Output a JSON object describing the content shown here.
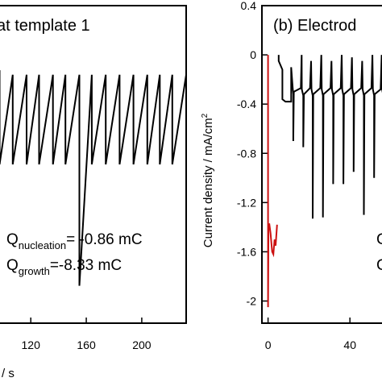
{
  "chart_data": [
    {
      "type": "line",
      "panel_title": "at template 1",
      "xlabel": "/ s",
      "xlim": [
        92,
        232
      ],
      "x_ticks": [
        120,
        160,
        200
      ],
      "series": [
        {
          "color": "#000000",
          "description_of_shape": "repeating sawtooth pulses",
          "points": [
            [
              92,
              -0.05
            ],
            [
              97.5,
              -0.05
            ],
            [
              97.5,
              -0.55
            ],
            [
              107,
              -0.07
            ],
            [
              107,
              -0.55
            ],
            [
              117,
              -0.07
            ],
            [
              117,
              -0.55
            ],
            [
              126,
              -0.07
            ],
            [
              126,
              -0.55
            ],
            [
              136,
              -0.07
            ],
            [
              136,
              -0.55
            ],
            [
              145,
              -0.07
            ],
            [
              145,
              -0.55
            ],
            [
              155,
              -0.07
            ],
            [
              155,
              -1.2
            ],
            [
              164,
              -0.07
            ],
            [
              164,
              -0.55
            ],
            [
              174,
              -0.07
            ],
            [
              174,
              -0.55
            ],
            [
              184,
              -0.07
            ],
            [
              184,
              -0.55
            ],
            [
              194,
              -0.07
            ],
            [
              194,
              -0.55
            ],
            [
              204,
              -0.07
            ],
            [
              204,
              -0.55
            ],
            [
              213,
              -0.07
            ],
            [
              213,
              -0.55
            ],
            [
              222,
              -0.07
            ],
            [
              222,
              -0.55
            ],
            [
              232,
              -0.07
            ]
          ]
        }
      ],
      "annotations": {
        "q_nucleation": {
          "base": "Q",
          "sub": "nucleation",
          "value": "= -0.86 mC"
        },
        "q_growth": {
          "base": "Q",
          "sub": "growth",
          "value": "=-8.33 mC"
        }
      }
    },
    {
      "type": "line",
      "panel_title": "(b) Electrod",
      "ylabel": "Current density / mA/cm",
      "ylabel_sup": "2",
      "xlim": [
        -3,
        60
      ],
      "ylim": [
        -2.18,
        0.4
      ],
      "x_ticks": [
        0,
        40
      ],
      "y_ticks": [
        0.4,
        0,
        -0.4,
        -0.8,
        -1.2,
        -1.6,
        -2
      ],
      "series": [
        {
          "color": "#cc1111",
          "points": [
            [
              0,
              0
            ],
            [
              0,
              -2.05
            ],
            [
              0.2,
              -1.4
            ],
            [
              0.6,
              -1.37
            ],
            [
              1.2,
              -1.45
            ],
            [
              2,
              -1.6
            ],
            [
              2.6,
              -1.62
            ],
            [
              3.2,
              -1.5
            ],
            [
              3.7,
              -1.55
            ],
            [
              4.4,
              -1.38
            ]
          ]
        },
        {
          "color": "#000000",
          "points": [
            [
              5.2,
              0
            ],
            [
              5.2,
              -0.05
            ],
            [
              7,
              -0.12
            ],
            [
              7,
              -0.36
            ],
            [
              8.5,
              -0.38
            ],
            [
              11.3,
              -0.38
            ],
            [
              11.3,
              -0.1
            ],
            [
              12,
              -0.26
            ],
            [
              12.3,
              -0.32
            ],
            [
              12.3,
              -0.7
            ],
            [
              12.6,
              -0.3
            ],
            [
              16,
              -0.27
            ],
            [
              16.4,
              0
            ],
            [
              16.5,
              -0.28
            ],
            [
              17.2,
              -0.33
            ],
            [
              17.2,
              -0.75
            ],
            [
              17.5,
              -0.32
            ],
            [
              20.5,
              -0.27
            ],
            [
              21,
              -0.05
            ],
            [
              21.2,
              -0.28
            ],
            [
              21.8,
              -0.33
            ],
            [
              21.8,
              -1.33
            ],
            [
              22.1,
              -0.32
            ],
            [
              25.5,
              -0.27
            ],
            [
              26,
              0
            ],
            [
              26.2,
              -0.28
            ],
            [
              26.8,
              -0.33
            ],
            [
              26.8,
              -1.32
            ],
            [
              27.1,
              -0.32
            ],
            [
              30.5,
              -0.27
            ],
            [
              31,
              -0.05
            ],
            [
              31.2,
              -0.28
            ],
            [
              31.8,
              -0.33
            ],
            [
              31.8,
              -1.05
            ],
            [
              32.1,
              -0.32
            ],
            [
              35.5,
              -0.27
            ],
            [
              36,
              0
            ],
            [
              36.2,
              -0.28
            ],
            [
              36.8,
              -0.33
            ],
            [
              36.8,
              -1.05
            ],
            [
              37.1,
              -0.32
            ],
            [
              40.5,
              -0.27
            ],
            [
              41,
              -0.02
            ],
            [
              41.2,
              -0.28
            ],
            [
              41.8,
              -0.33
            ],
            [
              41.8,
              -0.95
            ],
            [
              42.1,
              -0.32
            ],
            [
              45.5,
              -0.27
            ],
            [
              46,
              -0.05
            ],
            [
              46.2,
              -0.28
            ],
            [
              46.8,
              -0.33
            ],
            [
              46.8,
              -1.3
            ],
            [
              47.1,
              -0.32
            ],
            [
              50.5,
              -0.27
            ],
            [
              51,
              0
            ],
            [
              51.2,
              -0.28
            ],
            [
              51.8,
              -0.33
            ],
            [
              51.8,
              -1.0
            ],
            [
              52.1,
              -0.32
            ],
            [
              55,
              -0.28
            ],
            [
              55.5,
              0
            ],
            [
              55.7,
              -0.28
            ],
            [
              56.3,
              -0.33
            ],
            [
              56.3,
              -1.3
            ],
            [
              56.6,
              -0.32
            ],
            [
              60,
              -0.3
            ]
          ]
        }
      ],
      "right_edge_text": [
        "C",
        "C"
      ]
    }
  ]
}
